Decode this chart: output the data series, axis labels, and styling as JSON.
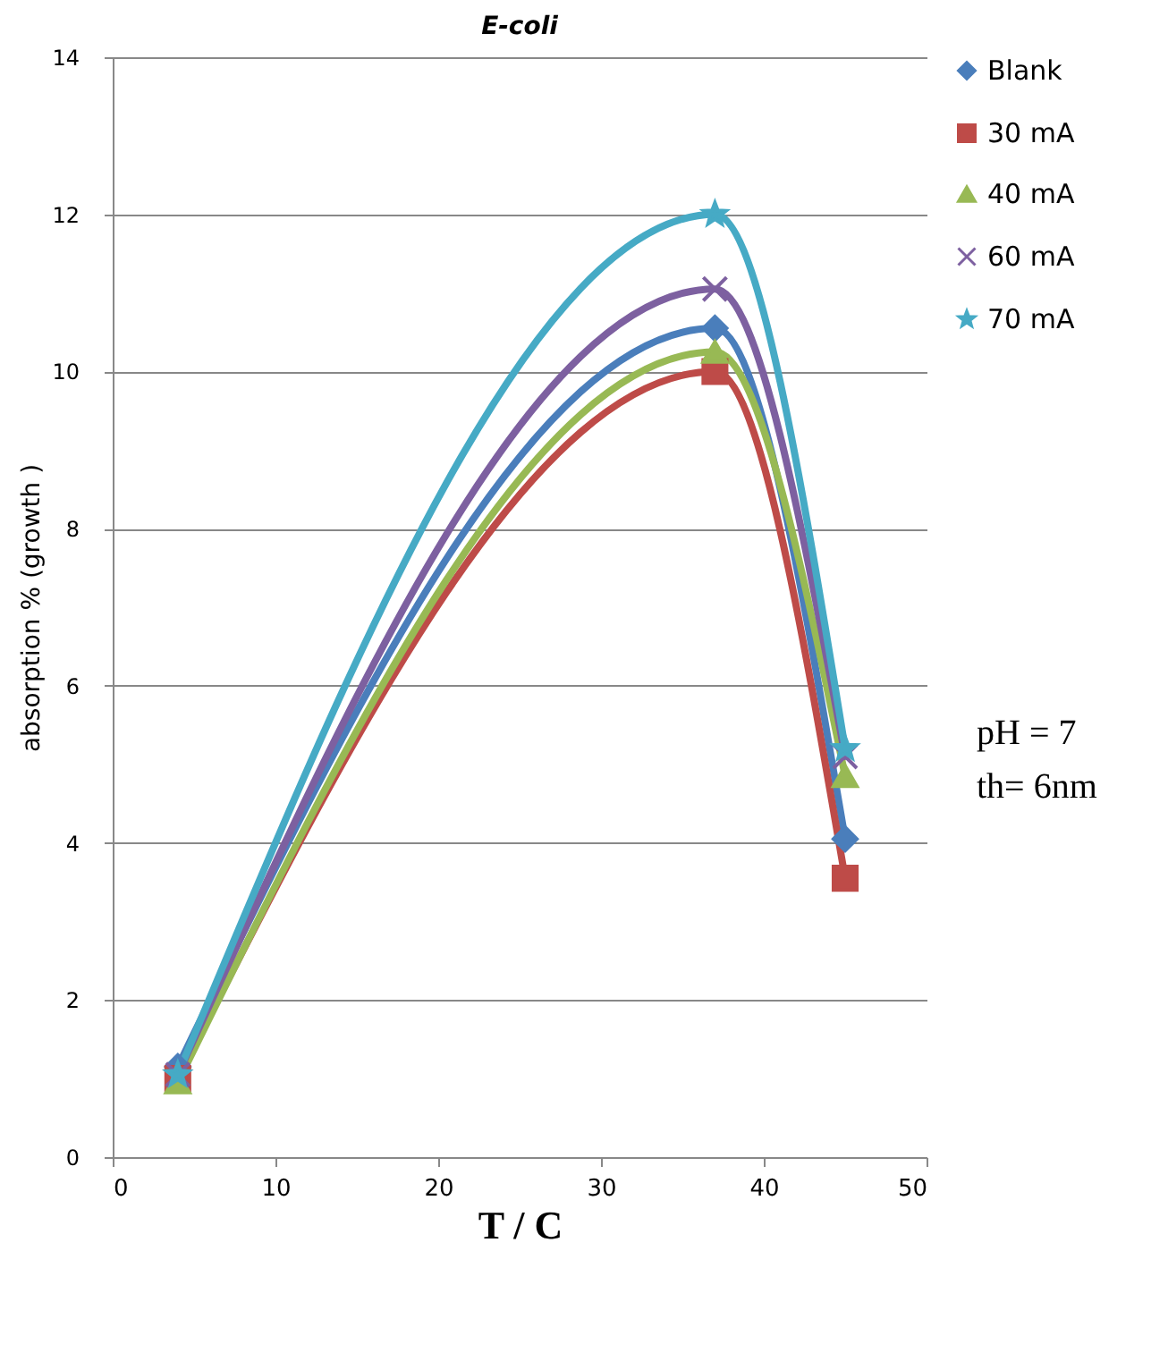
{
  "chart_data": {
    "type": "line",
    "title": "E-coli",
    "xlabel": "T / C",
    "ylabel": "absorption % (growth )",
    "x": [
      4,
      37,
      45
    ],
    "series": [
      {
        "name": "Blank",
        "color": "#4a7ebb",
        "marker": "diamond",
        "values": [
          1.15,
          10.55,
          4.05
        ]
      },
      {
        "name": "30 mA",
        "color": "#be4b48",
        "marker": "square",
        "values": [
          1.0,
          10.0,
          3.55
        ]
      },
      {
        "name": "40 mA",
        "color": "#98b954",
        "marker": "triangle",
        "values": [
          0.95,
          10.25,
          4.85
        ]
      },
      {
        "name": "60 mA",
        "color": "#7d60a0",
        "marker": "cross",
        "values": [
          1.05,
          11.05,
          5.1
        ]
      },
      {
        "name": "70 mA",
        "color": "#46aac5",
        "marker": "star",
        "values": [
          1.05,
          12.0,
          5.2
        ]
      }
    ],
    "xlim": [
      0,
      50
    ],
    "xticks": [
      0,
      10,
      20,
      30,
      40,
      50
    ],
    "ylim": [
      0,
      14
    ],
    "yticks": [
      0,
      2,
      4,
      6,
      8,
      10,
      12,
      14
    ],
    "grid": "y",
    "legend": "right",
    "annotations": [
      "pH = 7",
      "th= 6nm"
    ]
  }
}
